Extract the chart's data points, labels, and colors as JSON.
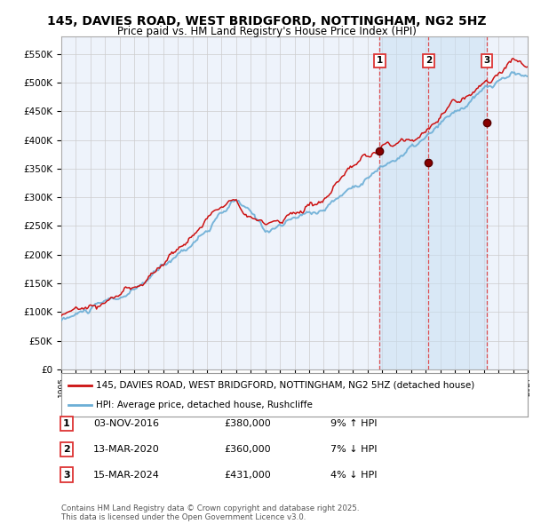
{
  "title": "145, DAVIES ROAD, WEST BRIDGFORD, NOTTINGHAM, NG2 5HZ",
  "subtitle": "Price paid vs. HM Land Registry's House Price Index (HPI)",
  "legend_line1": "145, DAVIES ROAD, WEST BRIDGFORD, NOTTINGHAM, NG2 5HZ (detached house)",
  "legend_line2": "HPI: Average price, detached house, Rushcliffe",
  "footer": "Contains HM Land Registry data © Crown copyright and database right 2025.\nThis data is licensed under the Open Government Licence v3.0.",
  "transactions": [
    {
      "num": 1,
      "date": "03-NOV-2016",
      "price": "£380,000",
      "hpi": "9% ↑ HPI",
      "year": 2016.84
    },
    {
      "num": 2,
      "date": "13-MAR-2020",
      "price": "£360,000",
      "hpi": "7% ↓ HPI",
      "year": 2020.2
    },
    {
      "num": 3,
      "date": "15-MAR-2024",
      "price": "£431,000",
      "hpi": "4% ↓ HPI",
      "year": 2024.2
    }
  ],
  "transaction_prices": [
    380000,
    360000,
    431000
  ],
  "ylim": [
    0,
    580000
  ],
  "yticks": [
    0,
    50000,
    100000,
    150000,
    200000,
    250000,
    300000,
    350000,
    400000,
    450000,
    500000,
    550000
  ],
  "xlim_start": 1995,
  "xlim_end": 2027,
  "hpi_color": "#6baed6",
  "price_color": "#cc1111",
  "background_color": "#eef3fb",
  "grid_color": "#cccccc",
  "vline_color": "#dd3333",
  "shade_color": "#c8dff2"
}
